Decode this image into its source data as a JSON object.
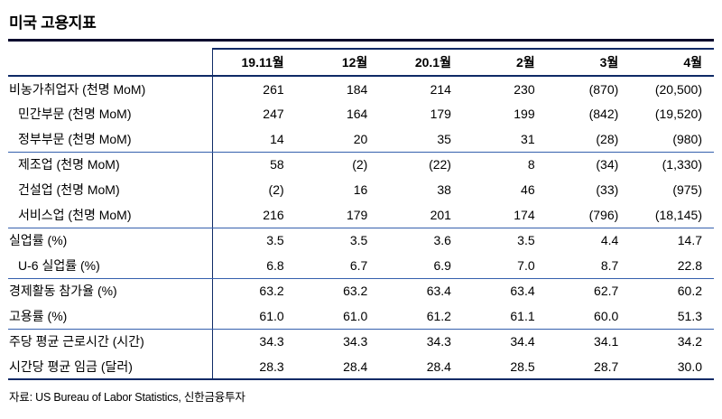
{
  "title": "미국 고용지표",
  "table": {
    "columns": [
      "19.11월",
      "12월",
      "20.1월",
      "2월",
      "3월",
      "4월"
    ],
    "rows": [
      {
        "label": "비농가취업자 (천명 MoM)",
        "values": [
          "261",
          "184",
          "214",
          "230",
          "(870)",
          "(20,500)"
        ]
      },
      {
        "label": "민간부문 (천명 MoM)",
        "values": [
          "247",
          "164",
          "179",
          "199",
          "(842)",
          "(19,520)"
        ]
      },
      {
        "label": "정부부문 (천명 MoM)",
        "values": [
          "14",
          "20",
          "35",
          "31",
          "(28)",
          "(980)"
        ]
      },
      {
        "label": "제조업 (천명 MoM)",
        "values": [
          "58",
          "(2)",
          "(22)",
          "8",
          "(34)",
          "(1,330)"
        ]
      },
      {
        "label": "건설업 (천명 MoM)",
        "values": [
          "(2)",
          "16",
          "38",
          "46",
          "(33)",
          "(975)"
        ]
      },
      {
        "label": "서비스업 (천명 MoM)",
        "values": [
          "216",
          "179",
          "201",
          "174",
          "(796)",
          "(18,145)"
        ]
      },
      {
        "label": "실업률 (%)",
        "values": [
          "3.5",
          "3.5",
          "3.6",
          "3.5",
          "4.4",
          "14.7"
        ]
      },
      {
        "label": "U-6 실업률 (%)",
        "values": [
          "6.8",
          "6.7",
          "6.9",
          "7.0",
          "8.7",
          "22.8"
        ]
      },
      {
        "label": "경제활동 참가율 (%)",
        "values": [
          "63.2",
          "63.2",
          "63.4",
          "63.4",
          "62.7",
          "60.2"
        ]
      },
      {
        "label": "고용률 (%)",
        "values": [
          "61.0",
          "61.0",
          "61.2",
          "61.1",
          "60.0",
          "51.3"
        ]
      },
      {
        "label": "주당 평균 근로시간 (시간)",
        "values": [
          "34.3",
          "34.3",
          "34.3",
          "34.4",
          "34.1",
          "34.2"
        ]
      },
      {
        "label": "시간당 평균 임금 (달러)",
        "values": [
          "28.3",
          "28.4",
          "28.4",
          "28.5",
          "28.7",
          "30.0"
        ]
      }
    ]
  },
  "footer": {
    "source": "자료: US Bureau of Labor Statistics, 신한금융투자"
  },
  "colors": {
    "rule-thick": "#0f2a66",
    "rule-thin": "#3560ad",
    "title-rule": "#0b0b2e",
    "text": "#000000"
  }
}
